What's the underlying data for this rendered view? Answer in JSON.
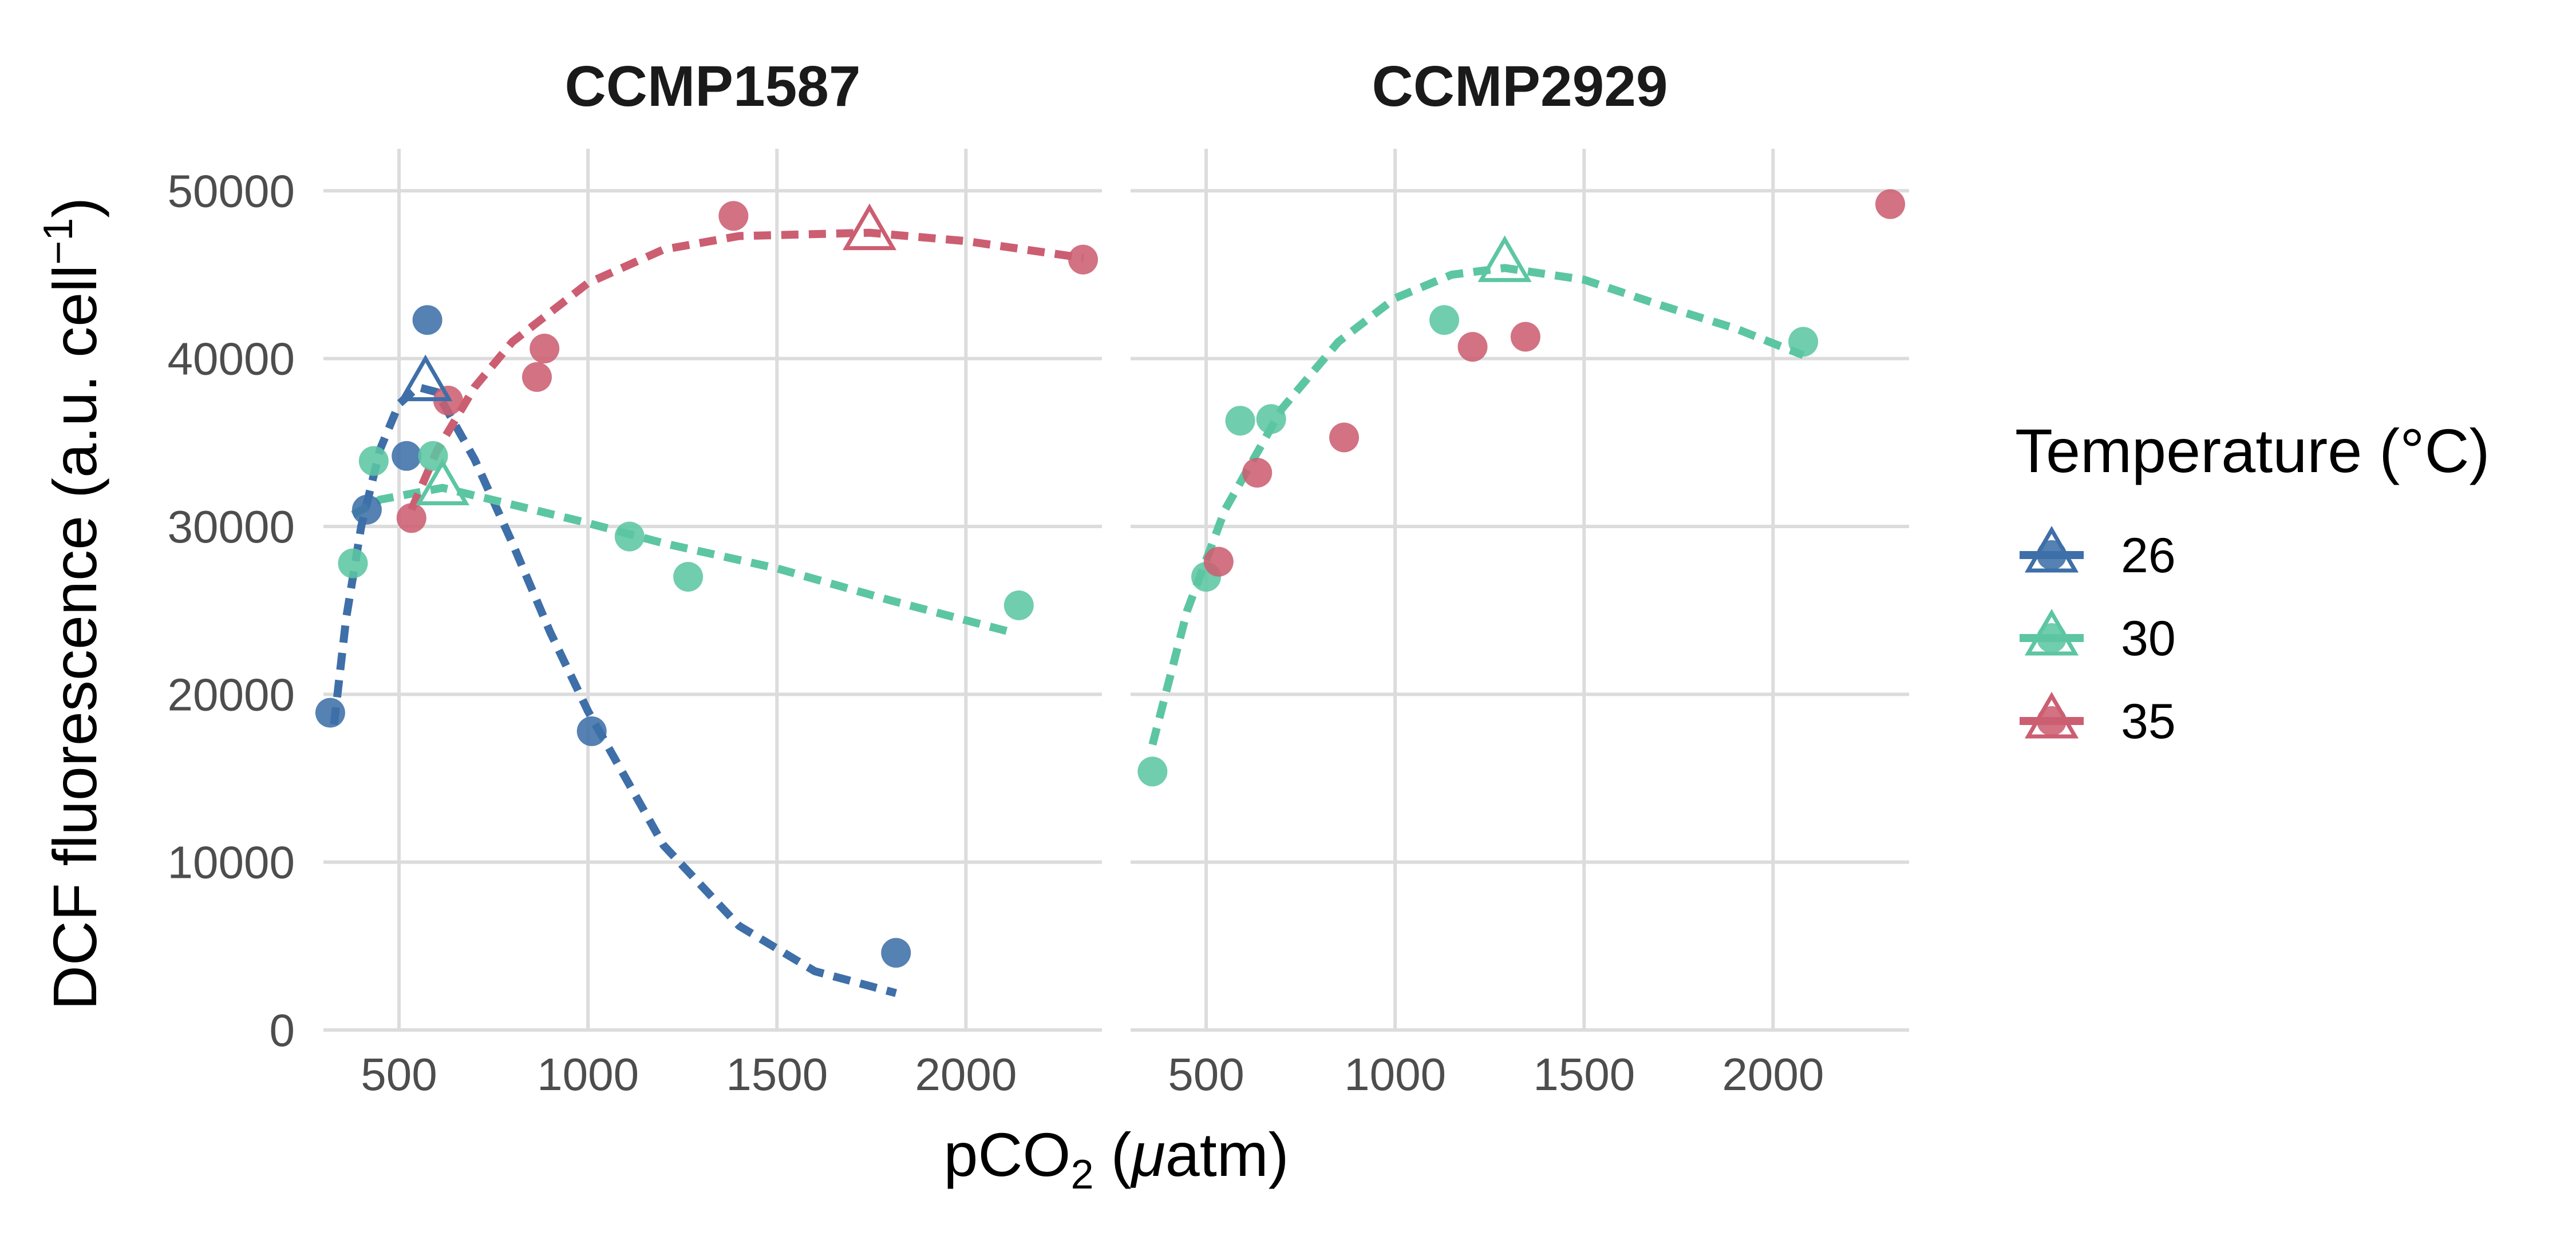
{
  "chart_data": {
    "type": "scatter",
    "ylabel": {
      "main": "DCF fluorescence (a.u. cell",
      "sup": "−1",
      "tail": ")"
    },
    "xlabel": {
      "pre": "pCO",
      "sub": "2",
      "mid": " (",
      "italic": "μ",
      "post": "atm)"
    },
    "ylim": [
      0,
      52500
    ],
    "y_ticks": [
      0,
      10000,
      20000,
      30000,
      40000,
      50000
    ],
    "y_tick_labels": [
      "0",
      "10000",
      "20000",
      "30000",
      "40000",
      "50000"
    ],
    "x_ticks": [
      500,
      1000,
      1500,
      2000
    ],
    "x_tick_labels": [
      "500",
      "1000",
      "1500",
      "2000"
    ],
    "grid": true,
    "legend": {
      "title": "Temperature (°C)",
      "placement": "right",
      "entries": [
        {
          "label": "26",
          "color": "#3E6FA8"
        },
        {
          "label": "30",
          "color": "#5CC6A2"
        },
        {
          "label": "35",
          "color": "#CC5E72"
        }
      ]
    },
    "panels": [
      {
        "title": "CCMP1587",
        "xlim": [
          300,
          2360
        ],
        "series": [
          {
            "name": "26",
            "color": "#3E6FA8",
            "points": [
              [
                318,
                18900
              ],
              [
                415,
                31000
              ],
              [
                520,
                34200
              ],
              [
                575,
                42300
              ],
              [
                1010,
                17800
              ],
              [
                1815,
                4600
              ]
            ],
            "optimum": [
              570,
              38500
            ],
            "fit": [
              [
                328,
                18200
              ],
              [
                360,
                24500
              ],
              [
                400,
                30000
              ],
              [
                450,
                34600
              ],
              [
                500,
                37300
              ],
              [
                550,
                38300
              ],
              [
                600,
                38000
              ],
              [
                700,
                34000
              ],
              [
                800,
                29000
              ],
              [
                900,
                23700
              ],
              [
                1000,
                19000
              ],
              [
                1200,
                11000
              ],
              [
                1400,
                6200
              ],
              [
                1600,
                3500
              ],
              [
                1815,
                2200
              ]
            ]
          },
          {
            "name": "30",
            "color": "#5CC6A2",
            "points": [
              [
                378,
                27800
              ],
              [
                433,
                33900
              ],
              [
                590,
                34200
              ],
              [
                1110,
                29400
              ],
              [
                1265,
                27000
              ],
              [
                2140,
                25300
              ]
            ],
            "optimum": [
              615,
              32300
            ],
            "fit": [
              [
                378,
                30700
              ],
              [
                450,
                31600
              ],
              [
                615,
                32300
              ],
              [
                800,
                31300
              ],
              [
                1000,
                30200
              ],
              [
                1200,
                29000
              ],
              [
                1500,
                27500
              ],
              [
                1800,
                25600
              ],
              [
                2120,
                23700
              ]
            ]
          },
          {
            "name": "35",
            "color": "#CC5E72",
            "points": [
              [
                533,
                30500
              ],
              [
                630,
                37500
              ],
              [
                865,
                38900
              ],
              [
                885,
                40600
              ],
              [
                1385,
                48500
              ],
              [
                2310,
                45900
              ]
            ],
            "optimum": [
              1745,
              47500
            ],
            "fit": [
              [
                533,
                31000
              ],
              [
                600,
                34500
              ],
              [
                700,
                38300
              ],
              [
                800,
                41000
              ],
              [
                1000,
                44500
              ],
              [
                1200,
                46500
              ],
              [
                1400,
                47300
              ],
              [
                1745,
                47500
              ],
              [
                2000,
                47000
              ],
              [
                2310,
                46000
              ]
            ]
          }
        ]
      },
      {
        "title": "CCMP2929",
        "xlim": [
          300,
          2360
        ],
        "series": [
          {
            "name": "30",
            "color": "#5CC6A2",
            "points": [
              [
                358,
                15400
              ],
              [
                500,
                27000
              ],
              [
                590,
                36300
              ],
              [
                672,
                36400
              ],
              [
                1130,
                42300
              ],
              [
                2080,
                41000
              ]
            ],
            "optimum": [
              1290,
              45600
            ],
            "fit": [
              [
                358,
                17000
              ],
              [
                450,
                25000
              ],
              [
                550,
                31000
              ],
              [
                700,
                37000
              ],
              [
                850,
                41000
              ],
              [
                1000,
                43600
              ],
              [
                1150,
                45000
              ],
              [
                1290,
                45400
              ],
              [
                1500,
                44700
              ],
              [
                1700,
                43200
              ],
              [
                1900,
                41800
              ],
              [
                2080,
                40200
              ]
            ]
          },
          {
            "name": "35",
            "color": "#CC5E72",
            "points": [
              [
                533,
                27900
              ],
              [
                635,
                33200
              ],
              [
                865,
                35300
              ],
              [
                1205,
                40700
              ],
              [
                1345,
                41300
              ],
              [
                2310,
                49200
              ]
            ],
            "optimum": null,
            "fit": []
          }
        ]
      }
    ]
  }
}
